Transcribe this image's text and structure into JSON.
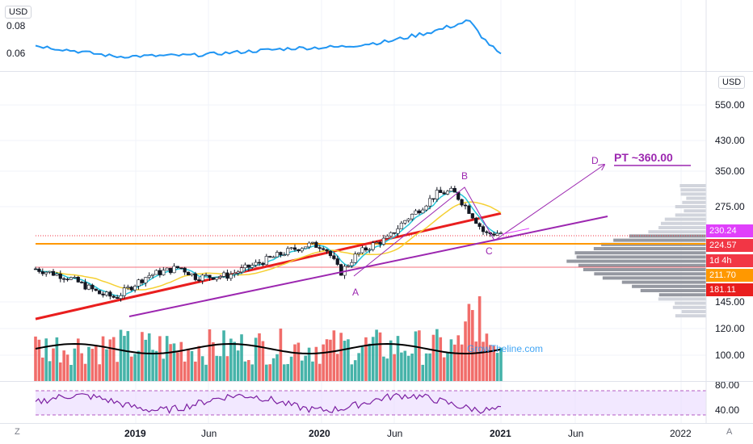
{
  "top_pane": {
    "currency": "USD",
    "ticks": [
      "0.08",
      "0.06"
    ],
    "tick_values": [
      0.08,
      0.06
    ],
    "line_color": "#2196f3"
  },
  "main_pane": {
    "currency": "USD",
    "watermark": "GrowTheline.com",
    "right_axis_ticks": [
      "550.00",
      "430.00",
      "350.00",
      "275.00",
      "145.00",
      "120.00",
      "100.00",
      "80.00",
      "40.00"
    ],
    "price_labels": [
      {
        "text": "230.24",
        "color": "#e040fb"
      },
      {
        "text": "224.57",
        "color": "#f23645"
      },
      {
        "text": "1d 4h",
        "color": "#f23645"
      },
      {
        "text": "211.70",
        "color": "#ff9800"
      },
      {
        "text": "181.11",
        "color": "#e91e1e"
      }
    ],
    "annotations": {
      "A": "A",
      "B": "B",
      "C": "C",
      "D": "D",
      "target": "PT ~360.00"
    }
  },
  "x_axis": {
    "ticks": [
      "2019",
      "Jun",
      "2020",
      "Jun",
      "2021",
      "Jun",
      "2022"
    ],
    "corner_left": "Z",
    "corner_right": "A"
  },
  "chart_data": {
    "type": "line",
    "title": "",
    "price_scale": "log",
    "x_range": [
      "2018-08",
      "2022-03"
    ],
    "price_path": [
      [
        "2018-08",
        180
      ],
      [
        "2018-10",
        170
      ],
      [
        "2018-12",
        152
      ],
      [
        "2019-01",
        148
      ],
      [
        "2019-03",
        172
      ],
      [
        "2019-05",
        182
      ],
      [
        "2019-06",
        170
      ],
      [
        "2019-08",
        172
      ],
      [
        "2019-10",
        188
      ],
      [
        "2019-12",
        205
      ],
      [
        "2020-01",
        212
      ],
      [
        "2020-02",
        210
      ],
      [
        "2020-03",
        175
      ],
      [
        "2020-04",
        198
      ],
      [
        "2020-05",
        212
      ],
      [
        "2020-06",
        222
      ],
      [
        "2020-07",
        250
      ],
      [
        "2020-08",
        272
      ],
      [
        "2020-09",
        300
      ],
      [
        "2020-10",
        305
      ],
      [
        "2020-11",
        268
      ],
      [
        "2020-12",
        228
      ],
      [
        "2021-01",
        230
      ]
    ],
    "indicator_top": [
      [
        "2018-08",
        0.068
      ],
      [
        "2019-01",
        0.06
      ],
      [
        "2019-06",
        0.061
      ],
      [
        "2019-12",
        0.066
      ],
      [
        "2020-03",
        0.067
      ],
      [
        "2020-06",
        0.071
      ],
      [
        "2020-09",
        0.079
      ],
      [
        "2020-11",
        0.086
      ],
      [
        "2020-12",
        0.072
      ],
      [
        "2021-01",
        0.061
      ]
    ],
    "horizontal_levels": [
      230.24,
      224.57,
      211.7,
      181.11
    ],
    "target_price": 360.0,
    "rsi_band": [
      30,
      70
    ],
    "grid": true
  }
}
